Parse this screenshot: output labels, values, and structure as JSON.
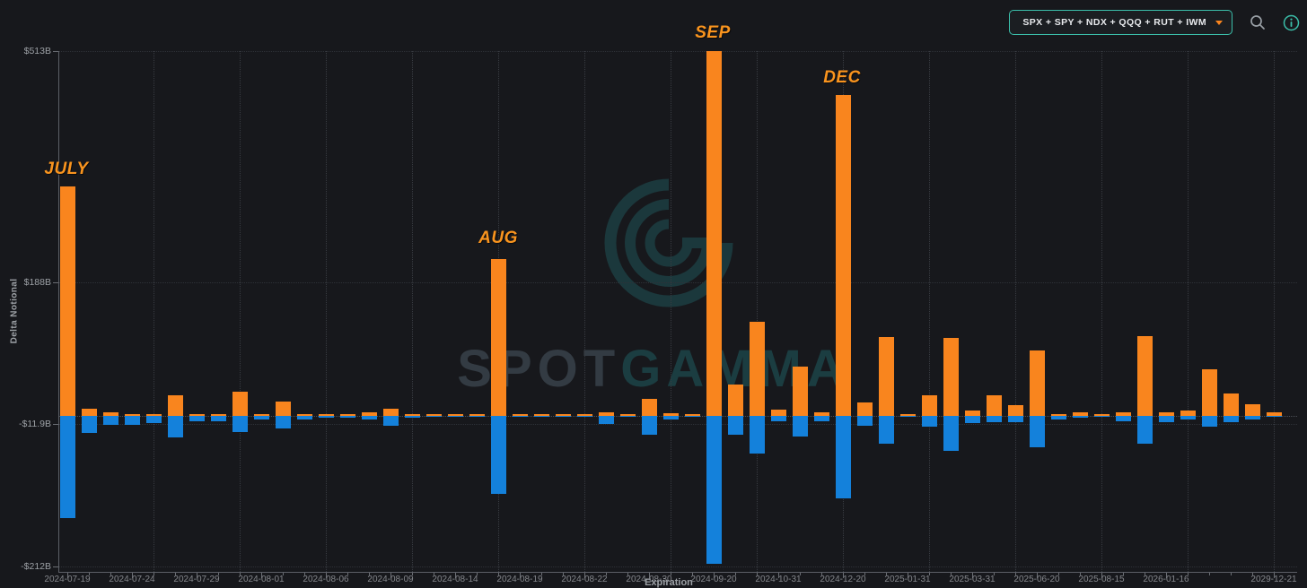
{
  "toolbar": {
    "symbols": "SPX + SPY + NDX + QQQ + RUT + IWM",
    "icons": [
      "chevron-down-icon",
      "search-icon",
      "info-icon"
    ]
  },
  "watermark": {
    "brand_left": "SPOT",
    "brand_right": "GAMMA"
  },
  "colors": {
    "background": "#17181c",
    "positive_bar": "#F9851E",
    "negative_bar": "#1481DB",
    "accent_teal": "#3BBFAA",
    "annotation_orange": "#F9941E",
    "axis_text": "#9CA0A5"
  },
  "chart_data": {
    "type": "bar",
    "title": "",
    "xlabel": "Expiration",
    "ylabel": "Delta Notional",
    "ylim": [
      -220,
      513
    ],
    "grid": "dotted",
    "legend": "none",
    "y_ticks": [
      {
        "value": 513,
        "label": "$513B"
      },
      {
        "value": 188,
        "label": "$188B"
      },
      {
        "value": -11.9,
        "label": "-$11.9B"
      },
      {
        "value": -212,
        "label": "-$212B"
      }
    ],
    "series": [
      {
        "name": "positive-delta-notional",
        "color": "#F9851E"
      },
      {
        "name": "negative-delta-notional",
        "color": "#1481DB"
      }
    ],
    "annotations": [
      {
        "text": "JULY",
        "x": 74,
        "y": 178
      },
      {
        "text": "AUG",
        "x": 555,
        "y": 255
      },
      {
        "text": "SEP",
        "x": 794,
        "y": 26
      },
      {
        "text": "DEC",
        "x": 938,
        "y": 76
      }
    ],
    "bars": [
      {
        "label": "2024-07-19",
        "pos": 323,
        "neg": -144
      },
      {
        "label": "",
        "pos": 9,
        "neg": -25
      },
      {
        "label": "",
        "pos": 5,
        "neg": -13
      },
      {
        "label": "2024-07-24",
        "pos": 2.5,
        "neg": -13
      },
      {
        "label": "",
        "pos": 2.5,
        "neg": -10
      },
      {
        "label": "",
        "pos": 28,
        "neg": -31
      },
      {
        "label": "2024-07-29",
        "pos": 2.5,
        "neg": -8
      },
      {
        "label": "",
        "pos": 1.5,
        "neg": -8
      },
      {
        "label": "",
        "pos": 33,
        "neg": -23
      },
      {
        "label": "2024-08-01",
        "pos": 1.5,
        "neg": -5
      },
      {
        "label": "",
        "pos": 20,
        "neg": -18
      },
      {
        "label": "",
        "pos": 1.5,
        "neg": -5
      },
      {
        "label": "2024-08-06",
        "pos": 1,
        "neg": -3.5
      },
      {
        "label": "",
        "pos": 1,
        "neg": -3
      },
      {
        "label": "",
        "pos": 4,
        "neg": -6
      },
      {
        "label": "2024-08-09",
        "pos": 9,
        "neg": -15
      },
      {
        "label": "",
        "pos": 1,
        "neg": -2.5
      },
      {
        "label": "",
        "pos": 0.5,
        "neg": -0.5
      },
      {
        "label": "2024-08-14",
        "pos": 1.5,
        "neg": -2
      },
      {
        "label": "",
        "pos": 2.5,
        "neg": -2
      },
      {
        "label": "",
        "pos": 220,
        "neg": -110
      },
      {
        "label": "2024-08-19",
        "pos": 0.5,
        "neg": -0.5
      },
      {
        "label": "",
        "pos": 0.5,
        "neg": -0.5
      },
      {
        "label": "",
        "pos": 0.5,
        "neg": -0.5
      },
      {
        "label": "2024-08-22",
        "pos": 0.6,
        "neg": -0.6
      },
      {
        "label": "",
        "pos": 4,
        "neg": -12
      },
      {
        "label": "",
        "pos": 0.4,
        "neg": -0.4
      },
      {
        "label": "2024-08-30",
        "pos": 23,
        "neg": -27
      },
      {
        "label": "",
        "pos": 3,
        "neg": -5
      },
      {
        "label": "",
        "pos": 0.4,
        "neg": -0.4
      },
      {
        "label": "2024-09-20",
        "pos": 513,
        "neg": -209
      },
      {
        "label": "",
        "pos": 44,
        "neg": -27
      },
      {
        "label": "",
        "pos": 132,
        "neg": -54
      },
      {
        "label": "2024-10-31",
        "pos": 8,
        "neg": -8
      },
      {
        "label": "",
        "pos": 69,
        "neg": -30
      },
      {
        "label": "",
        "pos": 4,
        "neg": -8
      },
      {
        "label": "2024-12-20",
        "pos": 451,
        "neg": -117
      },
      {
        "label": "",
        "pos": 18,
        "neg": -15
      },
      {
        "label": "",
        "pos": 110,
        "neg": -40
      },
      {
        "label": "2025-01-31",
        "pos": 0.5,
        "neg": -0.5
      },
      {
        "label": "",
        "pos": 29,
        "neg": -16
      },
      {
        "label": "",
        "pos": 109,
        "neg": -50
      },
      {
        "label": "2025-03-31",
        "pos": 7,
        "neg": -10
      },
      {
        "label": "",
        "pos": 29,
        "neg": -9
      },
      {
        "label": "",
        "pos": 15,
        "neg": -9
      },
      {
        "label": "2025-06-20",
        "pos": 92,
        "neg": -45
      },
      {
        "label": "",
        "pos": 2,
        "neg": -5
      },
      {
        "label": "",
        "pos": 4,
        "neg": -3.5
      },
      {
        "label": "2025-08-15",
        "pos": 0.5,
        "neg": -0.5
      },
      {
        "label": "",
        "pos": 5,
        "neg": -8
      },
      {
        "label": "",
        "pos": 112,
        "neg": -39
      },
      {
        "label": "2026-01-16",
        "pos": 5,
        "neg": -9
      },
      {
        "label": "",
        "pos": 7,
        "neg": -5
      },
      {
        "label": "",
        "pos": 65,
        "neg": -16
      },
      {
        "label": "",
        "pos": 31,
        "neg": -9
      },
      {
        "label": "",
        "pos": 16,
        "neg": -5
      },
      {
        "label": "2029-12-21",
        "pos": 5,
        "neg": -2
      }
    ]
  }
}
